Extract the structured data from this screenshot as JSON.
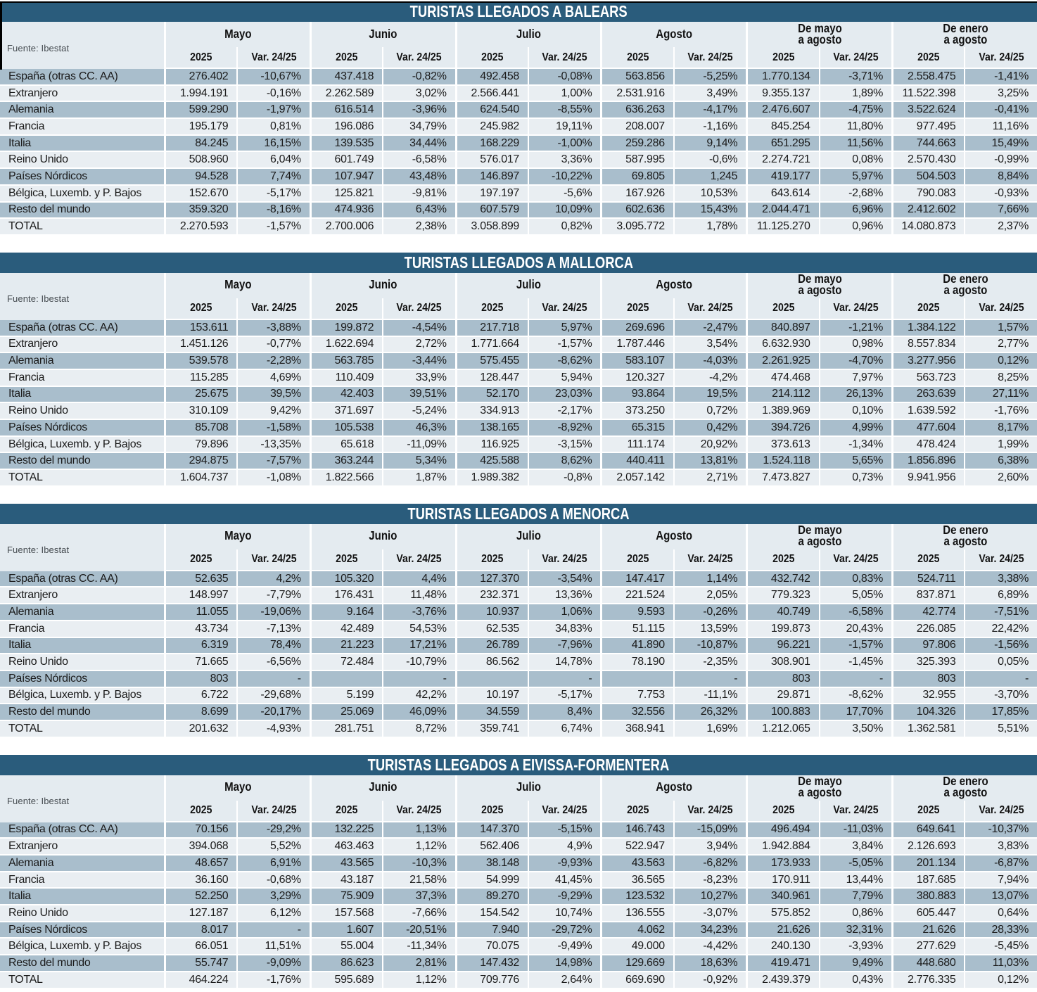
{
  "colors": {
    "titlebar": "#2A5C7C",
    "header_bg": "#E4EBF0",
    "row_dark": "#A9BECC",
    "row_light": "#E9EEF2",
    "title_text": "#FFFFFF",
    "body_text": "#1B1B1B"
  },
  "columns": {
    "source_label": "Fuente: Ibestat",
    "groups": [
      {
        "label": "Mayo",
        "lines": [
          "Mayo"
        ]
      },
      {
        "label": "Junio",
        "lines": [
          "Junio"
        ]
      },
      {
        "label": "Julio",
        "lines": [
          "Julio"
        ]
      },
      {
        "label": "Agosto",
        "lines": [
          "Agosto"
        ]
      },
      {
        "label": "De mayo a agosto",
        "lines": [
          "De mayo",
          "a agosto"
        ]
      },
      {
        "label": "De enero a agosto",
        "lines": [
          "De enero",
          "a agosto"
        ]
      }
    ],
    "subheaders": [
      "2025",
      "Var. 24/25"
    ]
  },
  "tables": [
    {
      "id": "balears",
      "title": "TURISTAS LLEGADOS A BALEARS",
      "rows": [
        {
          "label": "España (otras CC. AA)",
          "values": [
            "276.402",
            "-10,67%",
            "437.418",
            "-0,82%",
            "492.458",
            "-0,08%",
            "563.856",
            "-5,25%",
            "1.770.134",
            "-3,71%",
            "2.558.475",
            "-1,41%"
          ]
        },
        {
          "label": "Extranjero",
          "values": [
            "1.994.191",
            "-0,16%",
            "2.262.589",
            "3,02%",
            "2.566.441",
            "1,00%",
            "2.531.916",
            "3,49%",
            "9.355.137",
            "1,89%",
            "11.522.398",
            "3,25%"
          ]
        },
        {
          "label": "Alemania",
          "values": [
            "599.290",
            "-1,97%",
            "616.514",
            "-3,96%",
            "624.540",
            "-8,55%",
            "636.263",
            "-4,17%",
            "2.476.607",
            "-4,75%",
            "3.522.624",
            "-0,41%"
          ]
        },
        {
          "label": "Francia",
          "values": [
            "195.179",
            "0,81%",
            "196.086",
            "34,79%",
            "245.982",
            "19,11%",
            "208.007",
            "-1,16%",
            "845.254",
            "11,80%",
            "977.495",
            "11,16%"
          ]
        },
        {
          "label": "Italia",
          "values": [
            "84.245",
            "16,15%",
            "139.535",
            "34,44%",
            "168.229",
            "-1,00%",
            "259.286",
            "9,14%",
            "651.295",
            "11,56%",
            "744.663",
            "15,49%"
          ]
        },
        {
          "label": "Reino Unido",
          "values": [
            "508.960",
            "6,04%",
            "601.749",
            "-6,58%",
            "576.017",
            "3,36%",
            "587.995",
            "-0,6%",
            "2.274.721",
            "0,08%",
            "2.570.430",
            "-0,99%"
          ]
        },
        {
          "label": "Países Nórdicos",
          "values": [
            "94.528",
            "7,74%",
            "107.947",
            "43,48%",
            "146.897",
            "-10,22%",
            "69.805",
            "1,245",
            "419.177",
            "5,97%",
            "504.503",
            "8,84%"
          ]
        },
        {
          "label": "Bélgica, Luxemb. y P. Bajos",
          "values": [
            "152.670",
            "-5,17%",
            "125.821",
            "-9,81%",
            "197.197",
            "-5,6%",
            "167.926",
            "10,53%",
            "643.614",
            "-2,68%",
            "790.083",
            "-0,93%"
          ]
        },
        {
          "label": "Resto del mundo",
          "values": [
            "359.320",
            "-8,16%",
            "474.936",
            "6,43%",
            "607.579",
            "10,09%",
            "602.636",
            "15,43%",
            "2.044.471",
            "6,96%",
            "2.412.602",
            "7,66%"
          ]
        },
        {
          "label": "TOTAL",
          "values": [
            "2.270.593",
            "-1,57%",
            "2.700.006",
            "2,38%",
            "3.058.899",
            "0,82%",
            "3.095.772",
            "1,78%",
            "11.125.270",
            "0,96%",
            "14.080.873",
            "2,37%"
          ]
        }
      ]
    },
    {
      "id": "mallorca",
      "title": "TURISTAS LLEGADOS A MALLORCA",
      "rows": [
        {
          "label": "España (otras CC. AA)",
          "values": [
            "153.611",
            "-3,88%",
            "199.872",
            "-4,54%",
            "217.718",
            "5,97%",
            "269.696",
            "-2,47%",
            "840.897",
            "-1,21%",
            "1.384.122",
            "1,57%"
          ]
        },
        {
          "label": "Extranjero",
          "values": [
            "1.451.126",
            "-0,77%",
            "1.622.694",
            "2,72%",
            "1.771.664",
            "-1,57%",
            "1.787.446",
            "3,54%",
            "6.632.930",
            "0,98%",
            "8.557.834",
            "2,77%"
          ]
        },
        {
          "label": "Alemania",
          "values": [
            "539.578",
            "-2,28%",
            "563.785",
            "-3,44%",
            "575.455",
            "-8,62%",
            "583.107",
            "-4,03%",
            "2.261.925",
            "-4,70%",
            "3.277.956",
            "0,12%"
          ]
        },
        {
          "label": "Francia",
          "values": [
            "115.285",
            "4,69%",
            "110.409",
            "33,9%",
            "128.447",
            "5,94%",
            "120.327",
            "-4,2%",
            "474.468",
            "7,97%",
            "563.723",
            "8,25%"
          ]
        },
        {
          "label": "Italia",
          "values": [
            "25.675",
            "39,5%",
            "42.403",
            "39,51%",
            "52.170",
            "23,03%",
            "93.864",
            "19,5%",
            "214.112",
            "26,13%",
            "263.639",
            "27,11%"
          ]
        },
        {
          "label": "Reino Unido",
          "values": [
            "310.109",
            "9,42%",
            "371.697",
            "-5,24%",
            "334.913",
            "-2,17%",
            "373.250",
            "0,72%",
            "1.389.969",
            "0,10%",
            "1.639.592",
            "-1,76%"
          ]
        },
        {
          "label": "Países Nórdicos",
          "values": [
            "85.708",
            "-1,58%",
            "105.538",
            "46,3%",
            "138.165",
            "-8,92%",
            "65.315",
            "0,42%",
            "394.726",
            "4,99%",
            "477.604",
            "8,17%"
          ]
        },
        {
          "label": "Bélgica, Luxemb. y P. Bajos",
          "values": [
            "79.896",
            "-13,35%",
            "65.618",
            "-11,09%",
            "116.925",
            "-3,15%",
            "111.174",
            "20,92%",
            "373.613",
            "-1,34%",
            "478.424",
            "1,99%"
          ]
        },
        {
          "label": "Resto del mundo",
          "values": [
            "294.875",
            "-7,57%",
            "363.244",
            "5,34%",
            "425.588",
            "8,62%",
            "440.411",
            "13,81%",
            "1.524.118",
            "5,65%",
            "1.856.896",
            "6,38%"
          ]
        },
        {
          "label": "TOTAL",
          "values": [
            "1.604.737",
            "-1,08%",
            "1.822.566",
            "1,87%",
            "1.989.382",
            "-0,8%",
            "2.057.142",
            "2,71%",
            "7.473.827",
            "0,73%",
            "9.941.956",
            "2,60%"
          ]
        }
      ]
    },
    {
      "id": "menorca",
      "title": "TURISTAS LLEGADOS A MENORCA",
      "rows": [
        {
          "label": "España (otras CC. AA)",
          "values": [
            "52.635",
            "4,2%",
            "105.320",
            "4,4%",
            "127.370",
            "-3,54%",
            "147.417",
            "1,14%",
            "432.742",
            "0,83%",
            "524.711",
            "3,38%"
          ]
        },
        {
          "label": "Extranjero",
          "values": [
            "148.997",
            "-7,79%",
            "176.431",
            "11,48%",
            "232.371",
            "13,36%",
            "221.524",
            "2,05%",
            "779.323",
            "5,05%",
            "837.871",
            "6,89%"
          ]
        },
        {
          "label": "Alemania",
          "values": [
            "11.055",
            "-19,06%",
            "9.164",
            "-3,76%",
            "10.937",
            "1,06%",
            "9.593",
            "-0,26%",
            "40.749",
            "-6,58%",
            "42.774",
            "-7,51%"
          ]
        },
        {
          "label": "Francia",
          "values": [
            "43.734",
            "-7,13%",
            "42.489",
            "54,53%",
            "62.535",
            "34,83%",
            "51.115",
            "13,59%",
            "199.873",
            "20,43%",
            "226.085",
            "22,42%"
          ]
        },
        {
          "label": "Italia",
          "values": [
            "6.319",
            "78,4%",
            "21.223",
            "17,21%",
            "26.789",
            "-7,96%",
            "41.890",
            "-10,87%",
            "96.221",
            "-1,57%",
            "97.806",
            "-1,56%"
          ]
        },
        {
          "label": "Reino Unido",
          "values": [
            "71.665",
            "-6,56%",
            "72.484",
            "-10,79%",
            "86.562",
            "14,78%",
            "78.190",
            "-2,35%",
            "308.901",
            "-1,45%",
            "325.393",
            "0,05%"
          ]
        },
        {
          "label": "Países Nórdicos",
          "values": [
            "803",
            "-",
            "",
            "-",
            "",
            "-",
            "",
            "-",
            "803",
            "-",
            "803",
            "-"
          ]
        },
        {
          "label": "Bélgica, Luxemb. y P. Bajos",
          "values": [
            "6.722",
            "-29,68%",
            "5.199",
            "42,2%",
            "10.197",
            "-5,17%",
            "7.753",
            "-11,1%",
            "29.871",
            "-8,62%",
            "32.955",
            "-3,70%"
          ]
        },
        {
          "label": "Resto del mundo",
          "values": [
            "8.699",
            "-20,17%",
            "25.069",
            "46,09%",
            "34.559",
            "8,4%",
            "32.556",
            "26,32%",
            "100.883",
            "17,70%",
            "104.326",
            "17,85%"
          ]
        },
        {
          "label": "TOTAL",
          "values": [
            "201.632",
            "-4,93%",
            "281.751",
            "8,72%",
            "359.741",
            "6,74%",
            "368.941",
            "1,69%",
            "1.212.065",
            "3,50%",
            "1.362.581",
            "5,51%"
          ]
        }
      ]
    },
    {
      "id": "eivissa-formentera",
      "title": "TURISTAS LLEGADOS A EIVISSA-FORMENTERA",
      "rows": [
        {
          "label": "España (otras CC. AA)",
          "values": [
            "70.156",
            "-29,2%",
            "132.225",
            "1,13%",
            "147.370",
            "-5,15%",
            "146.743",
            "-15,09%",
            "496.494",
            "-11,03%",
            "649.641",
            "-10,37%"
          ]
        },
        {
          "label": "Extranjero",
          "values": [
            "394.068",
            "5,52%",
            "463.463",
            "1,12%",
            "562.406",
            "4,9%",
            "522.947",
            "3,94%",
            "1.942.884",
            "3,84%",
            "2.126.693",
            "3,83%"
          ]
        },
        {
          "label": "Alemania",
          "values": [
            "48.657",
            "6,91%",
            "43.565",
            "-10,3%",
            "38.148",
            "-9,93%",
            "43.563",
            "-6,82%",
            "173.933",
            "-5,05%",
            "201.134",
            "-6,87%"
          ]
        },
        {
          "label": "Francia",
          "values": [
            "36.160",
            "-0,68%",
            "43.187",
            "21,58%",
            "54.999",
            "41,45%",
            "36.565",
            "-8,23%",
            "170.911",
            "13,44%",
            "187.685",
            "7,94%"
          ]
        },
        {
          "label": "Italia",
          "values": [
            "52.250",
            "3,29%",
            "75.909",
            "37,3%",
            "89.270",
            "-9,29%",
            "123.532",
            "10,27%",
            "340.961",
            "7,79%",
            "380.883",
            "13,07%"
          ]
        },
        {
          "label": "Reino Unido",
          "values": [
            "127.187",
            "6,12%",
            "157.568",
            "-7,66%",
            "154.542",
            "10,74%",
            "136.555",
            "-3,07%",
            "575.852",
            "0,86%",
            "605.447",
            "0,64%"
          ]
        },
        {
          "label": "Países Nórdicos",
          "values": [
            "8.017",
            "-",
            "1.607",
            "-20,51%",
            "7.940",
            "-29,72%",
            "4.062",
            "34,23%",
            "21.626",
            "32,31%",
            "21.626",
            "28,33%"
          ]
        },
        {
          "label": "Bélgica, Luxemb. y P. Bajos",
          "values": [
            "66.051",
            "11,51%",
            "55.004",
            "-11,34%",
            "70.075",
            "-9,49%",
            "49.000",
            "-4,42%",
            "240.130",
            "-3,93%",
            "277.629",
            "-5,45%"
          ]
        },
        {
          "label": "Resto del mundo",
          "values": [
            "55.747",
            "-9,09%",
            "86.623",
            "2,81%",
            "147.432",
            "14,98%",
            "129.669",
            "18,63%",
            "419.471",
            "9,49%",
            "448.680",
            "11,03%"
          ]
        },
        {
          "label": "TOTAL",
          "values": [
            "464.224",
            "-1,76%",
            "595.689",
            "1,12%",
            "709.776",
            "2,64%",
            "669.690",
            "-0,92%",
            "2.439.379",
            "0,43%",
            "2.776.335",
            "0,12%"
          ]
        }
      ]
    }
  ]
}
